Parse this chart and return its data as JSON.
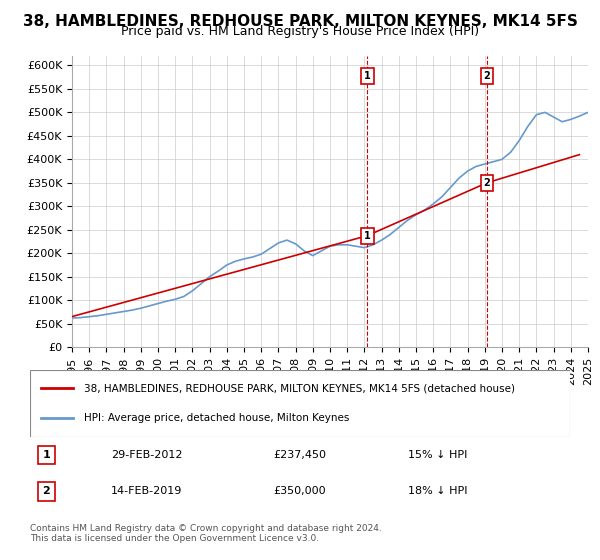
{
  "title": "38, HAMBLEDINES, REDHOUSE PARK, MILTON KEYNES, MK14 5FS",
  "subtitle": "Price paid vs. HM Land Registry's House Price Index (HPI)",
  "ylabel_ticks": [
    0,
    50000,
    100000,
    150000,
    200000,
    250000,
    300000,
    350000,
    400000,
    450000,
    500000,
    550000,
    600000
  ],
  "ylabel_labels": [
    "£0",
    "£50K",
    "£100K",
    "£150K",
    "£200K",
    "£250K",
    "£300K",
    "£350K",
    "£400K",
    "£450K",
    "£500K",
    "£550K",
    "£600K"
  ],
  "hpi_years": [
    1995,
    1995.5,
    1996,
    1996.5,
    1997,
    1997.5,
    1998,
    1998.5,
    1999,
    1999.5,
    2000,
    2000.5,
    2001,
    2001.5,
    2002,
    2002.5,
    2003,
    2003.5,
    2004,
    2004.5,
    2005,
    2005.5,
    2006,
    2006.5,
    2007,
    2007.5,
    2008,
    2008.5,
    2009,
    2009.5,
    2010,
    2010.5,
    2011,
    2011.5,
    2012,
    2012.5,
    2013,
    2013.5,
    2014,
    2014.5,
    2015,
    2015.5,
    2016,
    2016.5,
    2017,
    2017.5,
    2018,
    2018.5,
    2019,
    2019.5,
    2020,
    2020.5,
    2021,
    2021.5,
    2022,
    2022.5,
    2023,
    2023.5,
    2024,
    2024.5,
    2025
  ],
  "hpi_values": [
    62000,
    63000,
    65000,
    67000,
    70000,
    73000,
    76000,
    79000,
    83000,
    88000,
    93000,
    98000,
    102000,
    108000,
    120000,
    135000,
    150000,
    162000,
    175000,
    183000,
    188000,
    192000,
    198000,
    210000,
    222000,
    228000,
    220000,
    205000,
    195000,
    205000,
    215000,
    218000,
    218000,
    215000,
    212000,
    218000,
    228000,
    240000,
    255000,
    270000,
    282000,
    292000,
    305000,
    320000,
    340000,
    360000,
    375000,
    385000,
    390000,
    395000,
    400000,
    415000,
    440000,
    470000,
    495000,
    500000,
    490000,
    480000,
    485000,
    492000,
    500000
  ],
  "property_years": [
    1995,
    1995.08,
    2012.17,
    2019.12,
    2024.5
  ],
  "property_values": [
    65000,
    66000,
    237450,
    350000,
    410000
  ],
  "sale1_year": 2012.17,
  "sale1_value": 237450,
  "sale1_label": "1",
  "sale2_year": 2019.12,
  "sale2_value": 350000,
  "sale2_label": "2",
  "hpi_color": "#6699cc",
  "property_color": "#cc0000",
  "marker_color": "#cc0000",
  "background_color": "#ffffff",
  "grid_color": "#cccccc",
  "xlim": [
    1995,
    2025
  ],
  "ylim": [
    0,
    620000
  ],
  "legend_line1": "38, HAMBLEDINES, REDHOUSE PARK, MILTON KEYNES, MK14 5FS (detached house)",
  "legend_line2": "HPI: Average price, detached house, Milton Keynes",
  "table_row1": [
    "1",
    "29-FEB-2012",
    "£237,450",
    "15% ↓ HPI"
  ],
  "table_row2": [
    "2",
    "14-FEB-2019",
    "£350,000",
    "18% ↓ HPI"
  ],
  "footer": "Contains HM Land Registry data © Crown copyright and database right 2024.\nThis data is licensed under the Open Government Licence v3.0.",
  "title_fontsize": 11,
  "subtitle_fontsize": 9,
  "tick_fontsize": 8,
  "legend_fontsize": 8
}
